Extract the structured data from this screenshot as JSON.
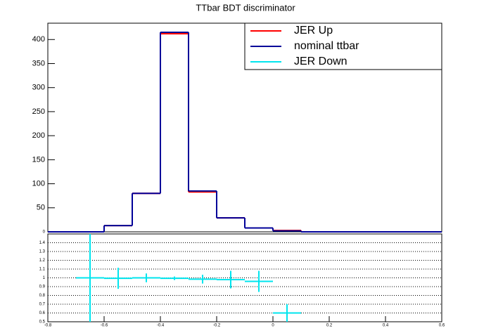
{
  "chart_data": [
    {
      "type": "histogram",
      "title": "TTbar BDT discriminator",
      "bins": [
        -0.8,
        -0.7,
        -0.6,
        -0.5,
        -0.4,
        -0.3,
        -0.2,
        -0.1,
        0,
        0.1,
        0.2,
        0.3,
        0.4,
        0.5,
        0.6
      ],
      "series": [
        {
          "name": "JER Up",
          "color": "#ff0000",
          "values": [
            0,
            0,
            13,
            80,
            412,
            83,
            29,
            8,
            3,
            0,
            0,
            0,
            0,
            0
          ]
        },
        {
          "name": "nominal ttbar",
          "color": "#000099",
          "values": [
            0,
            0,
            13,
            80,
            415,
            85,
            29,
            8,
            2,
            0,
            0,
            0,
            0,
            0
          ]
        }
      ],
      "xlim": [
        -0.8,
        0.6
      ],
      "ylim": [
        0,
        434
      ],
      "yticks": [
        0,
        50,
        100,
        150,
        200,
        250,
        300,
        350,
        400
      ],
      "legend": "top-right"
    },
    {
      "type": "errorbar",
      "x": [
        -0.65,
        -0.55,
        -0.45,
        -0.35,
        -0.25,
        -0.15,
        -0.05,
        0.05
      ],
      "series": [
        {
          "name": "JER Down",
          "color": "#00e5ee",
          "values": [
            1.0,
            0.995,
            1.0,
            0.995,
            0.985,
            0.98,
            0.96,
            0.6
          ],
          "errors": [
            0.7,
            0.12,
            0.05,
            0.02,
            0.05,
            0.1,
            0.12,
            0.1
          ]
        }
      ],
      "xerr": 0.05,
      "xlim": [
        -0.8,
        0.6
      ],
      "xticks": [
        -0.8,
        -0.6,
        -0.4,
        -0.2,
        0,
        0.2,
        0.4,
        0.6
      ],
      "ylim": [
        0.5,
        1.5
      ],
      "yticks": [
        0.5,
        0.6,
        0.7,
        0.8,
        0.9,
        1,
        1.1,
        1.2,
        1.3,
        1.4
      ],
      "grid": true
    }
  ]
}
